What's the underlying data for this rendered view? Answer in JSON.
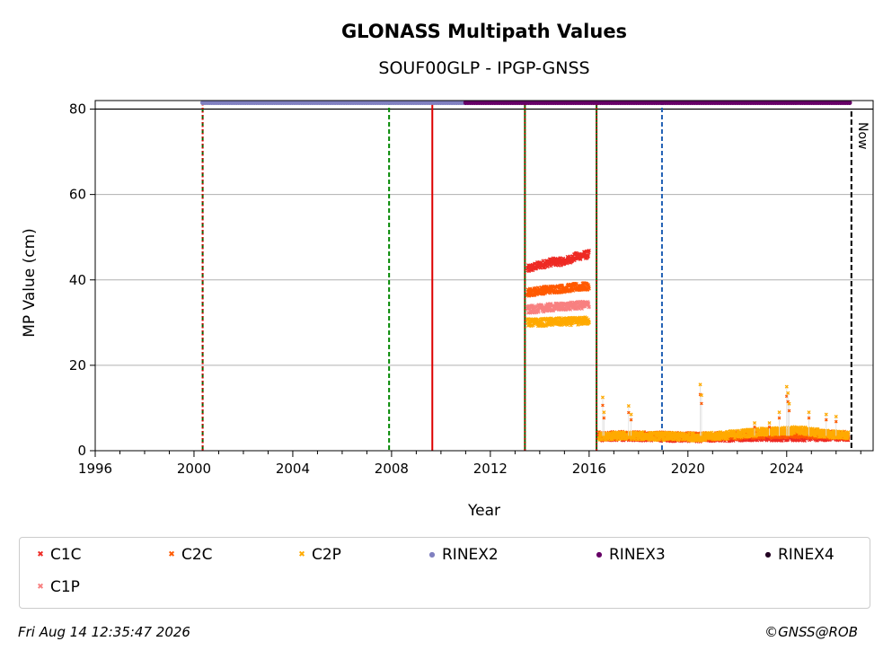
{
  "chart_data": {
    "type": "scatter",
    "title": "GLONASS Multipath Values",
    "subtitle": "SOUF00GLP - IPGP-GNSS",
    "xlabel": "Year",
    "ylabel": "MP Value (cm)",
    "xlim": [
      1996,
      2027.5
    ],
    "ylim": [
      0,
      82
    ],
    "xticks": [
      1996,
      2000,
      2004,
      2008,
      2012,
      2016,
      2020,
      2024
    ],
    "yticks": [
      0,
      20,
      40,
      60,
      80
    ],
    "grid": "horizontal",
    "now_label": "Now",
    "now_year": 2026.62,
    "vertical_lines": [
      {
        "year": 2000.35,
        "color": "#006600",
        "style": "dashed"
      },
      {
        "year": 2000.35,
        "color": "#dd0000",
        "style": "dotted"
      },
      {
        "year": 2007.9,
        "color": "#008800",
        "style": "dashed"
      },
      {
        "year": 2009.65,
        "color": "#dd0000",
        "style": "solid"
      },
      {
        "year": 2013.4,
        "color": "#006600",
        "style": "solid"
      },
      {
        "year": 2013.4,
        "color": "#dd0000",
        "style": "dotted"
      },
      {
        "year": 2016.3,
        "color": "#006600",
        "style": "solid"
      },
      {
        "year": 2016.3,
        "color": "#dd0000",
        "style": "dotted"
      },
      {
        "year": 2018.95,
        "color": "#1f5fb4",
        "style": "dashed"
      }
    ],
    "series": [
      {
        "name": "C1C",
        "color": "#ee2a24",
        "marker": "x",
        "segments": [
          {
            "x": [
              2013.5,
              2014.0,
              2014.5,
              2015.0,
              2015.5,
              2016.0
            ],
            "y": [
              42.5,
              43.5,
              44.2,
              44.3,
              45.5,
              46.0
            ]
          },
          {
            "x": [
              2016.4,
              2017.5,
              2018.5,
              2019.5,
              2020.5,
              2021.5,
              2022.5,
              2023.5,
              2024.5,
              2025.5,
              2026.5
            ],
            "y": [
              3.2,
              3.3,
              3.2,
              3.1,
              3.0,
              3.1,
              3.3,
              3.2,
              3.2,
              3.3,
              3.2
            ]
          }
        ]
      },
      {
        "name": "C2C",
        "color": "#ff5a00",
        "marker": "x",
        "segments": [
          {
            "x": [
              2013.5,
              2014.0,
              2014.5,
              2015.0,
              2015.5,
              2016.0
            ],
            "y": [
              37.0,
              37.5,
              37.8,
              38.0,
              38.3,
              38.5
            ]
          },
          {
            "x": [
              2016.4,
              2017.5,
              2018.5,
              2019.5,
              2020.5,
              2021.5,
              2022.5,
              2023.5,
              2024.5,
              2025.5,
              2026.5
            ],
            "y": [
              3.5,
              3.6,
              3.5,
              3.4,
              3.3,
              3.4,
              3.8,
              3.9,
              4.0,
              3.8,
              3.6
            ]
          }
        ]
      },
      {
        "name": "C2P",
        "color": "#ffaa00",
        "marker": "x",
        "segments": [
          {
            "x": [
              2013.5,
              2014.0,
              2014.5,
              2015.0,
              2015.5,
              2016.0
            ],
            "y": [
              30.0,
              30.0,
              30.2,
              30.2,
              30.3,
              30.5
            ]
          },
          {
            "x": [
              2016.4,
              2017.5,
              2018.5,
              2019.5,
              2020.5,
              2021.5,
              2022.5,
              2023.5,
              2024.5,
              2025.5,
              2026.5
            ],
            "y": [
              3.3,
              3.5,
              3.4,
              3.3,
              3.2,
              3.6,
              4.2,
              4.5,
              4.8,
              4.0,
              3.5
            ]
          }
        ]
      },
      {
        "name": "C1P",
        "color": "#f88080",
        "marker": "x",
        "segments": [
          {
            "x": [
              2013.5,
              2014.0,
              2014.5,
              2015.0,
              2015.5,
              2016.0
            ],
            "y": [
              33.0,
              33.3,
              33.6,
              33.8,
              34.0,
              34.2
            ]
          }
        ]
      },
      {
        "name": "RINEX2",
        "color": "#8080c0",
        "marker": "o",
        "segments": [
          {
            "x": [
              2000.35,
              2011.0
            ],
            "y": [
              81.5,
              81.5
            ]
          }
        ]
      },
      {
        "name": "RINEX3",
        "color": "#660066",
        "marker": "o",
        "segments": [
          {
            "x": [
              2011.0,
              2026.62
            ],
            "y": [
              81.5,
              81.5
            ]
          }
        ]
      },
      {
        "name": "RINEX4",
        "color": "#220022",
        "marker": "o",
        "segments": []
      }
    ],
    "spikes": [
      {
        "x": 2016.55,
        "y": 12.5
      },
      {
        "x": 2016.6,
        "y": 9.0
      },
      {
        "x": 2017.6,
        "y": 10.5
      },
      {
        "x": 2017.7,
        "y": 8.5
      },
      {
        "x": 2020.5,
        "y": 15.5
      },
      {
        "x": 2020.55,
        "y": 13.0
      },
      {
        "x": 2022.7,
        "y": 6.5
      },
      {
        "x": 2023.3,
        "y": 6.5
      },
      {
        "x": 2023.7,
        "y": 9.0
      },
      {
        "x": 2024.0,
        "y": 15.0
      },
      {
        "x": 2024.05,
        "y": 13.5
      },
      {
        "x": 2024.1,
        "y": 11.0
      },
      {
        "x": 2024.9,
        "y": 9.0
      },
      {
        "x": 2025.6,
        "y": 8.5
      },
      {
        "x": 2026.0,
        "y": 8.0
      }
    ]
  },
  "legend": [
    {
      "label": "C1C",
      "color": "#ee2a24",
      "marker": "x"
    },
    {
      "label": "C2C",
      "color": "#ff5a00",
      "marker": "x"
    },
    {
      "label": "C2P",
      "color": "#ffaa00",
      "marker": "x"
    },
    {
      "label": "RINEX2",
      "color": "#8080c0",
      "marker": "o"
    },
    {
      "label": "RINEX3",
      "color": "#660066",
      "marker": "o"
    },
    {
      "label": "RINEX4",
      "color": "#220022",
      "marker": "o"
    },
    {
      "label": "C1P",
      "color": "#f88080",
      "marker": "x"
    }
  ],
  "footer": {
    "timestamp": "Fri Aug 14 12:35:47 2026",
    "credit": "©GNSS@ROB"
  }
}
